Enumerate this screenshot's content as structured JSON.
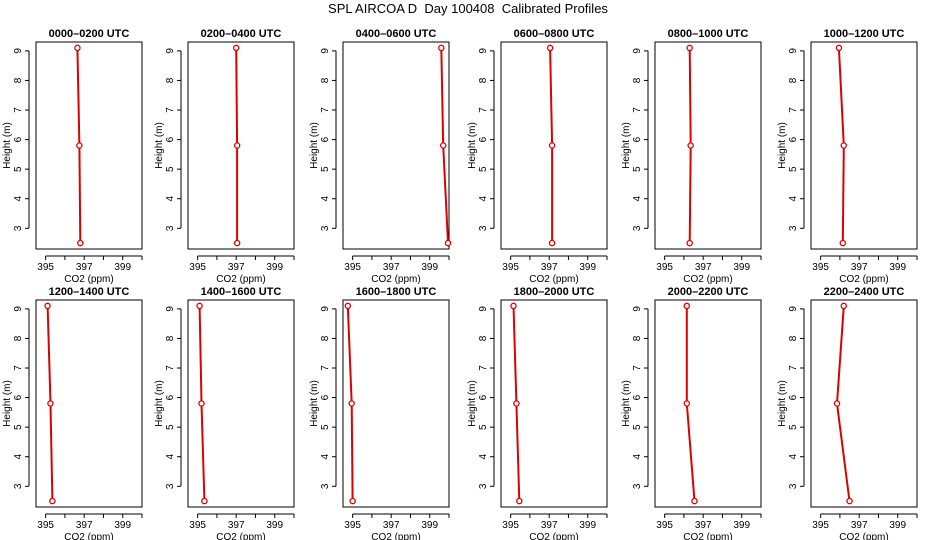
{
  "title": "SPL AIRCOA D  Day 100408  Calibrated Profiles",
  "colors": {
    "line": "#dd0000",
    "axis": "#000000"
  },
  "chart_data": [
    {
      "type": "line",
      "title": "0000–0200 UTC",
      "xlabel": "CO2 (ppm)",
      "ylabel": "Height (m)",
      "xlim": [
        394.5,
        400
      ],
      "ylim": [
        2.3,
        9.3
      ],
      "xticks": [
        395,
        397,
        399
      ],
      "yticks": [
        3,
        4,
        5,
        6,
        7,
        8,
        9
      ],
      "grid": false,
      "series": [
        {
          "x": [
            396.8,
            396.75,
            396.65
          ],
          "y": [
            2.5,
            5.8,
            9.1
          ]
        }
      ]
    },
    {
      "type": "line",
      "title": "0200–0400 UTC",
      "xlabel": "CO2 (ppm)",
      "ylabel": "Height (m)",
      "xlim": [
        394.5,
        400
      ],
      "ylim": [
        2.3,
        9.3
      ],
      "xticks": [
        395,
        397,
        399
      ],
      "yticks": [
        3,
        4,
        5,
        6,
        7,
        8,
        9
      ],
      "grid": false,
      "series": [
        {
          "x": [
            397.05,
            397.05,
            397.0
          ],
          "y": [
            2.5,
            5.8,
            9.1
          ]
        }
      ]
    },
    {
      "type": "line",
      "title": "0400–0600 UTC",
      "xlabel": "CO2 (ppm)",
      "ylabel": "Height (m)",
      "xlim": [
        394.5,
        400
      ],
      "ylim": [
        2.3,
        9.3
      ],
      "xticks": [
        395,
        397,
        399
      ],
      "yticks": [
        3,
        4,
        5,
        6,
        7,
        8,
        9
      ],
      "grid": false,
      "series": [
        {
          "x": [
            399.95,
            399.7,
            399.6
          ],
          "y": [
            2.5,
            5.8,
            9.1
          ]
        }
      ]
    },
    {
      "type": "line",
      "title": "0600–0800 UTC",
      "xlabel": "CO2 (ppm)",
      "ylabel": "Height (m)",
      "xlim": [
        394.5,
        400
      ],
      "ylim": [
        2.3,
        9.3
      ],
      "xticks": [
        395,
        397,
        399
      ],
      "yticks": [
        3,
        4,
        5,
        6,
        7,
        8,
        9
      ],
      "grid": false,
      "series": [
        {
          "x": [
            397.15,
            397.15,
            397.05
          ],
          "y": [
            2.5,
            5.8,
            9.1
          ]
        }
      ]
    },
    {
      "type": "line",
      "title": "0800–1000 UTC",
      "xlabel": "CO2 (ppm)",
      "ylabel": "Height (m)",
      "xlim": [
        394.5,
        400
      ],
      "ylim": [
        2.3,
        9.3
      ],
      "xticks": [
        395,
        397,
        399
      ],
      "yticks": [
        3,
        4,
        5,
        6,
        7,
        8,
        9
      ],
      "grid": false,
      "series": [
        {
          "x": [
            396.3,
            396.35,
            396.3
          ],
          "y": [
            2.5,
            5.8,
            9.1
          ]
        }
      ]
    },
    {
      "type": "line",
      "title": "1000–1200 UTC",
      "xlabel": "CO2 (ppm)",
      "ylabel": "Height (m)",
      "xlim": [
        394.5,
        400
      ],
      "ylim": [
        2.3,
        9.3
      ],
      "xticks": [
        395,
        397,
        399
      ],
      "yticks": [
        3,
        4,
        5,
        6,
        7,
        8,
        9
      ],
      "grid": false,
      "series": [
        {
          "x": [
            396.15,
            396.2,
            395.95
          ],
          "y": [
            2.5,
            5.8,
            9.1
          ]
        }
      ]
    },
    {
      "type": "line",
      "title": "1200–1400 UTC",
      "xlabel": "CO2 (ppm)",
      "ylabel": "Height (m)",
      "xlim": [
        394.5,
        400
      ],
      "ylim": [
        2.3,
        9.3
      ],
      "xticks": [
        395,
        397,
        399
      ],
      "yticks": [
        3,
        4,
        5,
        6,
        7,
        8,
        9
      ],
      "grid": false,
      "series": [
        {
          "x": [
            395.35,
            395.25,
            395.1
          ],
          "y": [
            2.5,
            5.8,
            9.1
          ]
        }
      ]
    },
    {
      "type": "line",
      "title": "1400–1600 UTC",
      "xlabel": "CO2 (ppm)",
      "ylabel": "Height (m)",
      "xlim": [
        394.5,
        400
      ],
      "ylim": [
        2.3,
        9.3
      ],
      "xticks": [
        395,
        397,
        399
      ],
      "yticks": [
        3,
        4,
        5,
        6,
        7,
        8,
        9
      ],
      "grid": false,
      "series": [
        {
          "x": [
            395.35,
            395.2,
            395.1
          ],
          "y": [
            2.5,
            5.8,
            9.1
          ]
        }
      ]
    },
    {
      "type": "line",
      "title": "1600–1800 UTC",
      "xlabel": "CO2 (ppm)",
      "ylabel": "Height (m)",
      "xlim": [
        394.5,
        400
      ],
      "ylim": [
        2.3,
        9.3
      ],
      "xticks": [
        395,
        397,
        399
      ],
      "yticks": [
        3,
        4,
        5,
        6,
        7,
        8,
        9
      ],
      "grid": false,
      "series": [
        {
          "x": [
            395.0,
            394.95,
            394.75
          ],
          "y": [
            2.5,
            5.8,
            9.1
          ]
        }
      ]
    },
    {
      "type": "line",
      "title": "1800–2000 UTC",
      "xlabel": "CO2 (ppm)",
      "ylabel": "Height (m)",
      "xlim": [
        394.5,
        400
      ],
      "ylim": [
        2.3,
        9.3
      ],
      "xticks": [
        395,
        397,
        399
      ],
      "yticks": [
        3,
        4,
        5,
        6,
        7,
        8,
        9
      ],
      "grid": false,
      "series": [
        {
          "x": [
            395.45,
            395.3,
            395.15
          ],
          "y": [
            2.5,
            5.8,
            9.1
          ]
        }
      ]
    },
    {
      "type": "line",
      "title": "2000–2200 UTC",
      "xlabel": "CO2 (ppm)",
      "ylabel": "Height (m)",
      "xlim": [
        394.5,
        400
      ],
      "ylim": [
        2.3,
        9.3
      ],
      "xticks": [
        395,
        397,
        399
      ],
      "yticks": [
        3,
        4,
        5,
        6,
        7,
        8,
        9
      ],
      "grid": false,
      "series": [
        {
          "x": [
            396.55,
            396.15,
            396.15
          ],
          "y": [
            2.5,
            5.8,
            9.1
          ]
        }
      ]
    },
    {
      "type": "line",
      "title": "2200–2400 UTC",
      "xlabel": "CO2 (ppm)",
      "ylabel": "Height (m)",
      "xlim": [
        394.5,
        400
      ],
      "ylim": [
        2.3,
        9.3
      ],
      "xticks": [
        395,
        397,
        399
      ],
      "yticks": [
        3,
        4,
        5,
        6,
        7,
        8,
        9
      ],
      "grid": false,
      "series": [
        {
          "x": [
            396.5,
            395.85,
            396.2
          ],
          "y": [
            2.5,
            5.8,
            9.1
          ]
        }
      ]
    }
  ]
}
